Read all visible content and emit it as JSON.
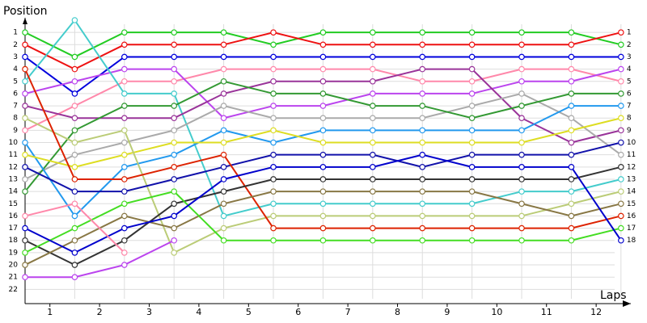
{
  "chart_data": {
    "type": "line",
    "y_title": "Position",
    "x_title": "Laps",
    "x": [
      0,
      1,
      2,
      3,
      4,
      5,
      6,
      7,
      8,
      9,
      10,
      11,
      12
    ],
    "xlim": [
      0,
      12.4
    ],
    "ylim": [
      0,
      23
    ],
    "y_inverted": true,
    "grid": true,
    "xticks": [
      {
        "value": 0.5,
        "label": "1"
      },
      {
        "value": 1.5,
        "label": "2"
      },
      {
        "value": 2.5,
        "label": "3"
      },
      {
        "value": 3.5,
        "label": "4"
      },
      {
        "value": 4.5,
        "label": "5"
      },
      {
        "value": 5.5,
        "label": "6"
      },
      {
        "value": 6.5,
        "label": "7"
      },
      {
        "value": 7.5,
        "label": "8"
      },
      {
        "value": 8.5,
        "label": "9"
      },
      {
        "value": 9.5,
        "label": "10"
      },
      {
        "value": 10.5,
        "label": "11"
      },
      {
        "value": 11.5,
        "label": "12"
      }
    ],
    "yticks": [
      1,
      2,
      3,
      4,
      5,
      6,
      7,
      8,
      9,
      10,
      11,
      12,
      13,
      14,
      15,
      16,
      17,
      18,
      19,
      20,
      21,
      22
    ],
    "series": [
      {
        "color": "#22cc22",
        "values": [
          1,
          3,
          1,
          1,
          1,
          2,
          1,
          1,
          1,
          1,
          1,
          1,
          2
        ]
      },
      {
        "color": "#ee1111",
        "values": [
          2,
          4,
          2,
          2,
          2,
          1,
          2,
          2,
          2,
          2,
          2,
          2,
          1
        ]
      },
      {
        "color": "#0000dd",
        "values": [
          3,
          6,
          3,
          3,
          3,
          3,
          3,
          3,
          3,
          3,
          3,
          3,
          3
        ]
      },
      {
        "color": "#ff88aa",
        "values": [
          9,
          7,
          5,
          5,
          4,
          4,
          4,
          4,
          5,
          5,
          4,
          4,
          5
        ]
      },
      {
        "color": "#bb44ee",
        "values": [
          6,
          5,
          4,
          4,
          8,
          7,
          7,
          6,
          6,
          6,
          5,
          5,
          4
        ]
      },
      {
        "color": "#44cccc",
        "values": [
          5,
          0,
          6,
          6,
          16,
          15,
          15,
          15,
          15,
          15,
          14,
          14,
          13
        ]
      },
      {
        "color": "#993399",
        "values": [
          7,
          8,
          8,
          8,
          6,
          5,
          5,
          5,
          4,
          4,
          8,
          10,
          9
        ]
      },
      {
        "color": "#aaaaaa",
        "values": [
          13,
          11,
          10,
          9,
          7,
          8,
          8,
          8,
          8,
          7,
          6,
          8,
          11
        ]
      },
      {
        "color": "#339933",
        "values": [
          14,
          9,
          7,
          7,
          5,
          6,
          6,
          7,
          7,
          8,
          7,
          6,
          6
        ]
      },
      {
        "color": "#2299ee",
        "values": [
          10,
          16,
          12,
          11,
          9,
          10,
          9,
          9,
          9,
          9,
          9,
          7,
          7
        ]
      },
      {
        "color": "#dddd22",
        "values": [
          11,
          12,
          11,
          10,
          10,
          9,
          10,
          10,
          10,
          10,
          10,
          9,
          8
        ]
      },
      {
        "color": "#bbcc77",
        "values": [
          8,
          10,
          9,
          19,
          17,
          16,
          16,
          16,
          16,
          16,
          16,
          15,
          14
        ]
      },
      {
        "color": "#1111aa",
        "values": [
          12,
          14,
          14,
          13,
          12,
          11,
          11,
          11,
          12,
          11,
          11,
          11,
          10
        ]
      },
      {
        "color": "#dd2200",
        "values": [
          4,
          13,
          13,
          12,
          11,
          17,
          17,
          17,
          17,
          17,
          17,
          17,
          16
        ]
      },
      {
        "color": "#333333",
        "values": [
          18,
          20,
          18,
          15,
          14,
          13,
          13,
          13,
          13,
          13,
          13,
          13,
          12
        ]
      },
      {
        "color": "#887744",
        "values": [
          20,
          18,
          16,
          17,
          15,
          14,
          14,
          14,
          14,
          14,
          15,
          16,
          15
        ]
      },
      {
        "color": "#44dd22",
        "values": [
          19,
          17,
          15,
          14,
          18,
          18,
          18,
          18,
          18,
          18,
          18,
          18,
          17
        ]
      },
      {
        "color": "#0000cc",
        "values": [
          17,
          19,
          17,
          16,
          13,
          12,
          12,
          12,
          11,
          12,
          12,
          12,
          18
        ]
      },
      {
        "color": "#bb44ee",
        "values": [
          21,
          21,
          20,
          18,
          null,
          null,
          null,
          null,
          null,
          null,
          null,
          null,
          null
        ]
      },
      {
        "color": "#ff88aa",
        "values": [
          16,
          15,
          19,
          null,
          null,
          null,
          null,
          null,
          null,
          null,
          null,
          null,
          null
        ]
      }
    ]
  }
}
